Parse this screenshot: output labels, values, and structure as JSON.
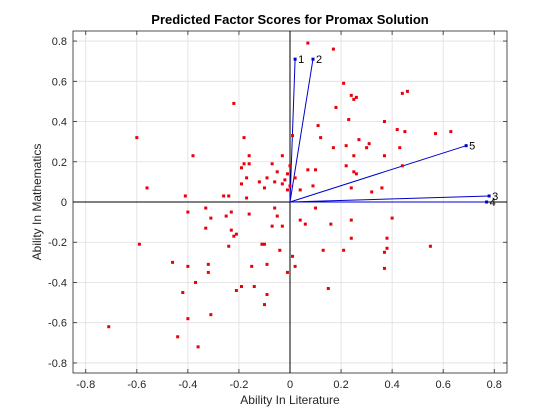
{
  "chart_data": {
    "type": "scatter",
    "title": "Predicted Factor Scores for Promax Solution",
    "xlabel": "Ability In Literature",
    "ylabel": "Ability In Mathematics",
    "xlim": [
      -0.85,
      0.85
    ],
    "ylim": [
      -0.85,
      0.85
    ],
    "xticks": [
      -0.8,
      -0.6,
      -0.4,
      -0.2,
      0,
      0.2,
      0.4,
      0.6,
      0.8
    ],
    "yticks": [
      -0.8,
      -0.6,
      -0.4,
      -0.2,
      0,
      0.2,
      0.4,
      0.6,
      0.8
    ],
    "xtick_labels": [
      "-0.8",
      "-0.6",
      "-0.4",
      "-0.2",
      "0",
      "0.2",
      "0.4",
      "0.6",
      "0.8"
    ],
    "ytick_labels": [
      "-0.8",
      "-0.6",
      "-0.4",
      "-0.2",
      "0",
      "0.2",
      "0.4",
      "0.6",
      "0.8"
    ],
    "grid": true,
    "point_color": "#e8000b",
    "vector_color": "#0000cc",
    "points": [
      [
        0.07,
        0.79
      ],
      [
        0.17,
        0.76
      ],
      [
        0.21,
        0.59
      ],
      [
        0.24,
        0.53
      ],
      [
        0.26,
        0.52
      ],
      [
        0.25,
        0.51
      ],
      [
        0.44,
        0.54
      ],
      [
        0.46,
        0.55
      ],
      [
        -0.22,
        0.49
      ],
      [
        0.18,
        0.47
      ],
      [
        0.23,
        0.41
      ],
      [
        0.37,
        0.4
      ],
      [
        0.11,
        0.38
      ],
      [
        0.45,
        0.35
      ],
      [
        0.57,
        0.34
      ],
      [
        0.63,
        0.35
      ],
      [
        0.42,
        0.36
      ],
      [
        -0.6,
        0.32
      ],
      [
        -0.18,
        0.32
      ],
      [
        0.01,
        0.33
      ],
      [
        0.12,
        0.32
      ],
      [
        0.27,
        0.31
      ],
      [
        0.22,
        0.28
      ],
      [
        0.31,
        0.29
      ],
      [
        0.3,
        0.27
      ],
      [
        0.17,
        0.27
      ],
      [
        -0.38,
        0.23
      ],
      [
        -0.16,
        0.23
      ],
      [
        -0.03,
        0.23
      ],
      [
        0.43,
        0.27
      ],
      [
        0.37,
        0.23
      ],
      [
        0.25,
        0.23
      ],
      [
        -0.18,
        0.19
      ],
      [
        -0.16,
        0.19
      ],
      [
        -0.07,
        0.19
      ],
      [
        0.0,
        0.18
      ],
      [
        0.07,
        0.16
      ],
      [
        0.1,
        0.16
      ],
      [
        0.22,
        0.18
      ],
      [
        0.44,
        0.18
      ],
      [
        -0.19,
        0.17
      ],
      [
        -0.05,
        0.15
      ],
      [
        -0.01,
        0.14
      ],
      [
        0.25,
        0.15
      ],
      [
        0.26,
        0.14
      ],
      [
        -0.17,
        0.12
      ],
      [
        -0.09,
        0.12
      ],
      [
        -0.02,
        0.11
      ],
      [
        0.02,
        0.12
      ],
      [
        -0.12,
        0.1
      ],
      [
        -0.06,
        0.1
      ],
      [
        -0.19,
        0.09
      ],
      [
        -0.03,
        0.09
      ],
      [
        -0.56,
        0.07
      ],
      [
        -0.1,
        0.07
      ],
      [
        0.09,
        0.08
      ],
      [
        0.0,
        0.08
      ],
      [
        0.24,
        0.07
      ],
      [
        0.36,
        0.07
      ],
      [
        -0.41,
        0.03
      ],
      [
        -0.26,
        0.03
      ],
      [
        -0.24,
        0.03
      ],
      [
        -0.17,
        0.02
      ],
      [
        -0.01,
        0.06
      ],
      [
        0.04,
        0.06
      ],
      [
        0.32,
        0.05
      ],
      [
        -0.33,
        -0.03
      ],
      [
        -0.4,
        -0.05
      ],
      [
        -0.23,
        -0.05
      ],
      [
        -0.06,
        -0.03
      ],
      [
        0.1,
        -0.03
      ],
      [
        0.4,
        -0.08
      ],
      [
        -0.31,
        -0.08
      ],
      [
        -0.25,
        -0.07
      ],
      [
        -0.16,
        -0.06
      ],
      [
        -0.05,
        -0.07
      ],
      [
        0.04,
        -0.09
      ],
      [
        0.24,
        -0.09
      ],
      [
        0.16,
        -0.11
      ],
      [
        -0.23,
        -0.14
      ],
      [
        -0.21,
        -0.16
      ],
      [
        -0.22,
        -0.17
      ],
      [
        -0.33,
        -0.13
      ],
      [
        -0.07,
        -0.12
      ],
      [
        -0.03,
        -0.12
      ],
      [
        0.06,
        -0.11
      ],
      [
        0.24,
        -0.18
      ],
      [
        0.38,
        -0.18
      ],
      [
        -0.59,
        -0.21
      ],
      [
        -0.1,
        -0.21
      ],
      [
        -0.11,
        -0.21
      ],
      [
        -0.24,
        -0.22
      ],
      [
        0.21,
        -0.24
      ],
      [
        0.38,
        -0.23
      ],
      [
        0.55,
        -0.22
      ],
      [
        -0.04,
        -0.24
      ],
      [
        0.13,
        -0.24
      ],
      [
        0.37,
        -0.25
      ],
      [
        0.01,
        -0.27
      ],
      [
        -0.46,
        -0.3
      ],
      [
        -0.4,
        -0.32
      ],
      [
        -0.32,
        -0.31
      ],
      [
        -0.15,
        -0.32
      ],
      [
        -0.09,
        -0.31
      ],
      [
        0.02,
        -0.32
      ],
      [
        0.37,
        -0.33
      ],
      [
        -0.32,
        -0.35
      ],
      [
        -0.01,
        -0.35
      ],
      [
        -0.37,
        -0.4
      ],
      [
        -0.19,
        -0.42
      ],
      [
        -0.14,
        -0.42
      ],
      [
        -0.21,
        -0.44
      ],
      [
        0.15,
        -0.43
      ],
      [
        -0.42,
        -0.45
      ],
      [
        -0.09,
        -0.46
      ],
      [
        -0.1,
        -0.51
      ],
      [
        -0.31,
        -0.56
      ],
      [
        -0.4,
        -0.58
      ],
      [
        -0.44,
        -0.67
      ],
      [
        -0.36,
        -0.72
      ],
      [
        -0.71,
        -0.62
      ]
    ],
    "vectors": [
      {
        "label": "1",
        "x": 0.02,
        "y": 0.71
      },
      {
        "label": "2",
        "x": 0.09,
        "y": 0.71
      },
      {
        "label": "3",
        "x": 0.78,
        "y": 0.03
      },
      {
        "label": "4",
        "x": 0.77,
        "y": 0.0
      },
      {
        "label": "5",
        "x": 0.69,
        "y": 0.28
      }
    ]
  }
}
